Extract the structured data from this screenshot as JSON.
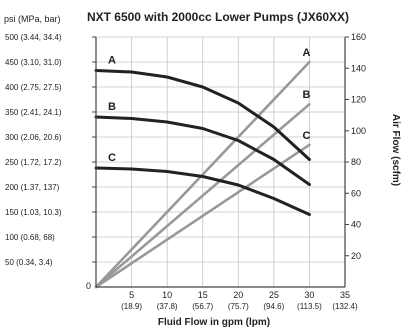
{
  "chart_data": {
    "type": "line",
    "title": "NXT 6500 with 2000cc Lower Pumps (JX60XX)",
    "y_left_unit_label": "psi (MPa, bar)",
    "y_right_label": "Air Flow (scfm)",
    "xlabel": "Fluid Flow in gpm (lpm)",
    "xlim": [
      0,
      35
    ],
    "ylim_left": [
      0,
      500
    ],
    "ylim_right": [
      0,
      160
    ],
    "grid": true,
    "x_ticks": [
      {
        "value": 5,
        "label": "5",
        "sublabel": "(18.9)"
      },
      {
        "value": 10,
        "label": "10",
        "sublabel": "(37.8)"
      },
      {
        "value": 15,
        "label": "15",
        "sublabel": "(56.7)"
      },
      {
        "value": 20,
        "label": "20",
        "sublabel": "(75.7)"
      },
      {
        "value": 25,
        "label": "25",
        "sublabel": "(94.6)"
      },
      {
        "value": 30,
        "label": "30",
        "sublabel": "(113.5)"
      },
      {
        "value": 35,
        "label": "35",
        "sublabel": "(132.4)"
      }
    ],
    "y_left_ticks": [
      {
        "value": 50,
        "label": "50 (0.34, 3.4)"
      },
      {
        "value": 100,
        "label": "100 (0.68, 68)"
      },
      {
        "value": 150,
        "label": "150 (1.03, 10.3)"
      },
      {
        "value": 200,
        "label": "200 (1.37, 137)"
      },
      {
        "value": 250,
        "label": "250 (1.72, 17.2)"
      },
      {
        "value": 300,
        "label": "300 (2.06, 20.6)"
      },
      {
        "value": 350,
        "label": "350 (2.41, 24.1)"
      },
      {
        "value": 400,
        "label": "400 (2.75, 27.5)"
      },
      {
        "value": 450,
        "label": "450 (3.10, 31.0)"
      },
      {
        "value": 500,
        "label": "500 (3.44, 34.4)"
      }
    ],
    "y_right_ticks": [
      20,
      40,
      60,
      80,
      100,
      120,
      140,
      160
    ],
    "pressure_series": [
      {
        "name": "A",
        "color": "#222222",
        "x": [
          0,
          5,
          10,
          15,
          20,
          25,
          30
        ],
        "y": [
          433,
          430,
          420,
          400,
          368,
          320,
          255
        ]
      },
      {
        "name": "B",
        "color": "#222222",
        "x": [
          0,
          5,
          10,
          15,
          20,
          25,
          30
        ],
        "y": [
          340,
          337,
          330,
          317,
          293,
          255,
          205
        ]
      },
      {
        "name": "C",
        "color": "#222222",
        "x": [
          0,
          5,
          10,
          15,
          20,
          25,
          30
        ],
        "y": [
          238,
          236,
          231,
          221,
          204,
          177,
          145
        ]
      }
    ],
    "air_flow_series": [
      {
        "name": "A",
        "color": "#999999",
        "x": [
          0,
          30
        ],
        "y": [
          0,
          144
        ]
      },
      {
        "name": "B",
        "color": "#999999",
        "x": [
          0,
          30
        ],
        "y": [
          0,
          117
        ]
      },
      {
        "name": "C",
        "color": "#999999",
        "x": [
          0,
          30
        ],
        "y": [
          0,
          91
        ]
      }
    ]
  }
}
